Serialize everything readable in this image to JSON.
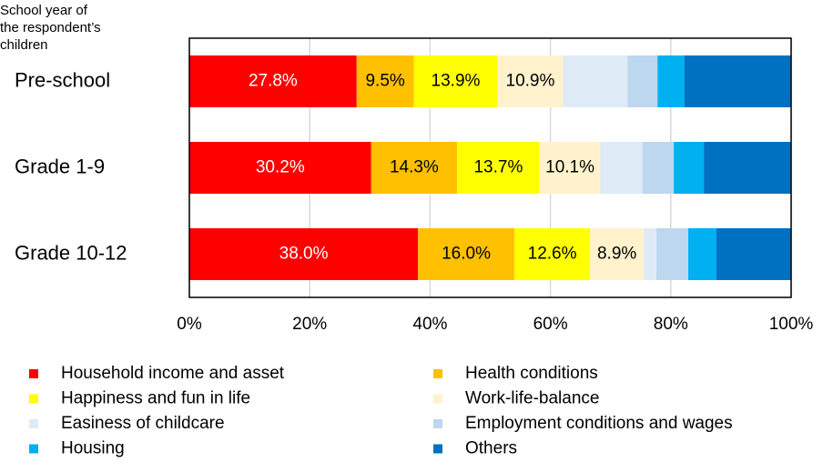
{
  "chart_data": {
    "type": "stacked_bar_horizontal",
    "y_label": [
      "School year of",
      "the respondent’s",
      "children"
    ],
    "categories": [
      "Pre-school",
      "Grade 1-9",
      "Grade 10-12"
    ],
    "series": [
      {
        "name": "Household income and asset",
        "color": "#ff0000",
        "values": [
          27.8,
          30.2,
          38.0
        ],
        "value_labels": [
          "27.8%",
          "30.2%",
          "38.0%"
        ]
      },
      {
        "name": "Health conditions",
        "color": "#ffc000",
        "values": [
          9.5,
          14.3,
          16.0
        ],
        "value_labels": [
          "9.5%",
          "14.3%",
          "16.0%"
        ]
      },
      {
        "name": "Happiness and fun in life",
        "color": "#ffff00",
        "values": [
          13.9,
          13.7,
          12.6
        ],
        "value_labels": [
          "13.9%",
          "13.7%",
          "12.6%"
        ]
      },
      {
        "name": "Work-life-balance",
        "color": "#fff2cc",
        "values": [
          10.9,
          10.1,
          8.9
        ],
        "value_labels": [
          "10.9%",
          "10.1%",
          "8.9%"
        ]
      },
      {
        "name": "Easiness of childcare",
        "color": "#deebf7",
        "values": [
          10.7,
          7.0,
          2.1
        ]
      },
      {
        "name": "Employment conditions and wages",
        "color": "#bdd7ee",
        "values": [
          5.0,
          5.2,
          5.3
        ]
      },
      {
        "name": "Housing",
        "color": "#00b0f0",
        "values": [
          4.5,
          5.0,
          4.7
        ]
      },
      {
        "name": "Others",
        "color": "#0070c0",
        "values": [
          17.7,
          14.5,
          12.4
        ]
      }
    ],
    "xlim": [
      0,
      100
    ],
    "xticks": [
      {
        "value": 0,
        "label": "0%"
      },
      {
        "value": 20,
        "label": "20%"
      },
      {
        "value": 40,
        "label": "40%"
      },
      {
        "value": 60,
        "label": "60%"
      },
      {
        "value": 80,
        "label": "80%"
      },
      {
        "value": 100,
        "label": "100%"
      }
    ],
    "grid": true
  }
}
